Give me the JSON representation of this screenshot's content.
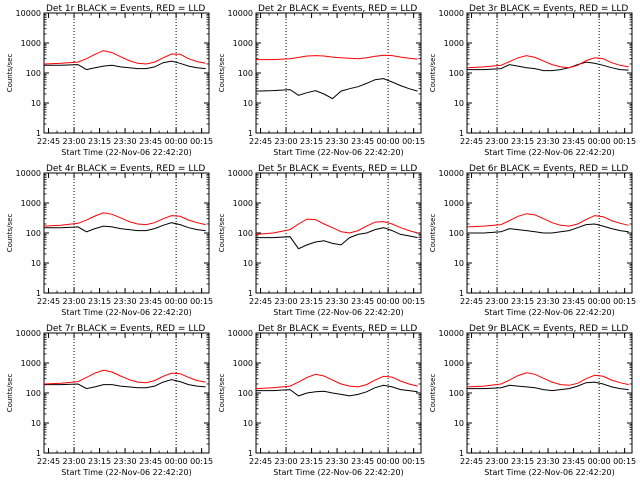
{
  "chart_data": [
    {
      "type": "line",
      "title": "Det 1r BLACK = Events, RED = LLD",
      "ylabel": "Counts/sec",
      "xlabel": "Start Time (22-Nov-06 22:42:20)",
      "x": [
        0,
        10,
        20,
        25,
        30,
        35,
        40,
        45,
        50,
        55,
        60,
        65,
        70,
        75,
        80,
        85,
        90,
        95
      ],
      "series": [
        {
          "name": "Events",
          "color": "#000000",
          "values": [
            180,
            180,
            190,
            130,
            150,
            170,
            180,
            160,
            150,
            140,
            140,
            160,
            220,
            250,
            210,
            170,
            150,
            140
          ]
        },
        {
          "name": "LLD",
          "color": "#ff0000",
          "values": [
            200,
            210,
            230,
            300,
            420,
            560,
            480,
            350,
            260,
            210,
            200,
            230,
            320,
            430,
            420,
            300,
            240,
            210
          ]
        }
      ]
    },
    {
      "type": "line",
      "title": "Det 2r BLACK = Events, RED = LLD",
      "ylabel": "Counts/sec",
      "xlabel": "Start Time (22-Nov-06 22:42:20)",
      "x": [
        0,
        10,
        20,
        25,
        30,
        35,
        40,
        45,
        50,
        55,
        60,
        65,
        70,
        75,
        80,
        85,
        90,
        95
      ],
      "series": [
        {
          "name": "Events",
          "color": "#000000",
          "values": [
            25,
            26,
            28,
            18,
            22,
            26,
            20,
            14,
            25,
            30,
            35,
            45,
            60,
            65,
            50,
            38,
            30,
            25
          ]
        },
        {
          "name": "LLD",
          "color": "#ff0000",
          "values": [
            280,
            280,
            300,
            330,
            370,
            380,
            370,
            340,
            320,
            310,
            300,
            320,
            360,
            390,
            380,
            340,
            310,
            290
          ]
        }
      ]
    },
    {
      "type": "line",
      "title": "Det 3r BLACK = Events, RED = LLD",
      "ylabel": "Counts/sec",
      "xlabel": "Start Time (22-Nov-06 22:42:20)",
      "x": [
        0,
        10,
        20,
        25,
        30,
        35,
        40,
        45,
        50,
        55,
        60,
        65,
        70,
        75,
        80,
        85,
        90,
        95
      ],
      "series": [
        {
          "name": "Events",
          "color": "#000000",
          "values": [
            130,
            130,
            140,
            190,
            170,
            150,
            140,
            120,
            120,
            130,
            150,
            190,
            230,
            210,
            180,
            150,
            130,
            125
          ]
        },
        {
          "name": "LLD",
          "color": "#ff0000",
          "values": [
            150,
            160,
            180,
            240,
            320,
            380,
            330,
            250,
            190,
            160,
            150,
            180,
            260,
            320,
            300,
            220,
            180,
            160
          ]
        }
      ]
    },
    {
      "type": "line",
      "title": "Det 4r BLACK = Events, RED = LLD",
      "ylabel": "Counts/sec",
      "xlabel": "Start Time (22-Nov-06 22:42:20)",
      "x": [
        0,
        10,
        20,
        25,
        30,
        35,
        40,
        45,
        50,
        55,
        60,
        65,
        70,
        75,
        80,
        85,
        90,
        95
      ],
      "series": [
        {
          "name": "Events",
          "color": "#000000",
          "values": [
            150,
            150,
            160,
            110,
            140,
            170,
            160,
            140,
            130,
            120,
            120,
            140,
            180,
            220,
            190,
            150,
            130,
            120
          ]
        },
        {
          "name": "LLD",
          "color": "#ff0000",
          "values": [
            170,
            180,
            210,
            270,
            370,
            470,
            420,
            320,
            240,
            200,
            190,
            220,
            300,
            380,
            360,
            270,
            220,
            190
          ]
        }
      ]
    },
    {
      "type": "line",
      "title": "Det 5r BLACK = Events, RED = LLD",
      "ylabel": "Counts/sec",
      "xlabel": "Start Time (22-Nov-06 22:42:20)",
      "x": [
        0,
        10,
        20,
        25,
        30,
        35,
        40,
        45,
        50,
        55,
        60,
        65,
        70,
        75,
        80,
        85,
        90,
        95
      ],
      "series": [
        {
          "name": "Events",
          "color": "#000000",
          "values": [
            70,
            70,
            75,
            30,
            40,
            50,
            55,
            45,
            40,
            70,
            90,
            100,
            130,
            150,
            120,
            90,
            80,
            70
          ]
        },
        {
          "name": "LLD",
          "color": "#ff0000",
          "values": [
            90,
            100,
            130,
            200,
            290,
            280,
            200,
            150,
            110,
            100,
            120,
            170,
            230,
            240,
            200,
            150,
            120,
            100
          ]
        }
      ]
    },
    {
      "type": "line",
      "title": "Det 6r BLACK = Events, RED = LLD",
      "ylabel": "Counts/sec",
      "xlabel": "Start Time (22-Nov-06 22:42:20)",
      "x": [
        0,
        10,
        20,
        25,
        30,
        35,
        40,
        45,
        50,
        55,
        60,
        65,
        70,
        75,
        80,
        85,
        90,
        95
      ],
      "series": [
        {
          "name": "Events",
          "color": "#000000",
          "values": [
            100,
            100,
            110,
            140,
            130,
            120,
            110,
            100,
            100,
            110,
            120,
            150,
            190,
            200,
            170,
            140,
            120,
            110
          ]
        },
        {
          "name": "LLD",
          "color": "#ff0000",
          "values": [
            160,
            170,
            190,
            260,
            360,
            440,
            400,
            300,
            220,
            180,
            170,
            200,
            280,
            380,
            350,
            260,
            210,
            180
          ]
        }
      ]
    },
    {
      "type": "line",
      "title": "Det 7r BLACK = Events, RED = LLD",
      "ylabel": "Counts/sec",
      "xlabel": "Start Time (22-Nov-06 22:42:20)",
      "x": [
        0,
        10,
        20,
        25,
        30,
        35,
        40,
        45,
        50,
        55,
        60,
        65,
        70,
        75,
        80,
        85,
        90,
        95
      ],
      "series": [
        {
          "name": "Events",
          "color": "#000000",
          "values": [
            190,
            190,
            200,
            140,
            160,
            190,
            190,
            170,
            160,
            150,
            150,
            170,
            230,
            280,
            240,
            190,
            170,
            160
          ]
        },
        {
          "name": "LLD",
          "color": "#ff0000",
          "values": [
            200,
            210,
            240,
            330,
            460,
            580,
            500,
            370,
            280,
            230,
            220,
            260,
            360,
            460,
            440,
            330,
            260,
            230
          ]
        }
      ]
    },
    {
      "type": "line",
      "title": "Det 8r BLACK = Events, RED = LLD",
      "ylabel": "Counts/sec",
      "xlabel": "Start Time (22-Nov-06 22:42:20)",
      "x": [
        0,
        10,
        20,
        25,
        30,
        35,
        40,
        45,
        50,
        55,
        60,
        65,
        70,
        75,
        80,
        85,
        90,
        95
      ],
      "series": [
        {
          "name": "Events",
          "color": "#000000",
          "values": [
            120,
            120,
            130,
            80,
            100,
            110,
            115,
            100,
            90,
            80,
            90,
            110,
            150,
            180,
            160,
            130,
            120,
            110
          ]
        },
        {
          "name": "LLD",
          "color": "#ff0000",
          "values": [
            140,
            150,
            170,
            230,
            330,
            420,
            370,
            270,
            200,
            170,
            160,
            190,
            270,
            360,
            340,
            250,
            200,
            170
          ]
        }
      ]
    },
    {
      "type": "line",
      "title": "Det 9r BLACK = Events, RED = LLD",
      "ylabel": "Counts/sec",
      "xlabel": "Start Time (22-Nov-06 22:42:20)",
      "x": [
        0,
        10,
        20,
        25,
        30,
        35,
        40,
        45,
        50,
        55,
        60,
        65,
        70,
        75,
        80,
        85,
        90,
        95
      ],
      "series": [
        {
          "name": "Events",
          "color": "#000000",
          "values": [
            140,
            140,
            150,
            180,
            170,
            160,
            150,
            130,
            120,
            130,
            140,
            170,
            220,
            230,
            200,
            160,
            140,
            130
          ]
        },
        {
          "name": "LLD",
          "color": "#ff0000",
          "values": [
            160,
            170,
            200,
            270,
            380,
            470,
            420,
            310,
            230,
            190,
            180,
            210,
            300,
            390,
            360,
            270,
            220,
            190
          ]
        }
      ]
    }
  ],
  "axes": {
    "xticks": [
      "22:45",
      "23:00",
      "23:15",
      "23:30",
      "23:45",
      "00:00",
      "00:15"
    ],
    "xtick_pos": [
      2.67,
      17.67,
      32.67,
      47.67,
      62.67,
      77.67,
      92.67
    ],
    "xlim": [
      0,
      97
    ],
    "yticks": [
      "1",
      "10",
      "100",
      "1000",
      "10000"
    ],
    "ytick_vals": [
      1,
      10,
      100,
      1000,
      10000
    ],
    "ylim": [
      1,
      10000
    ],
    "yscale": "log",
    "vlines_dotted": [
      17.67,
      77.67
    ],
    "colors": {
      "axes": "#000000",
      "events": "#000000",
      "lld": "#ff0000"
    }
  }
}
